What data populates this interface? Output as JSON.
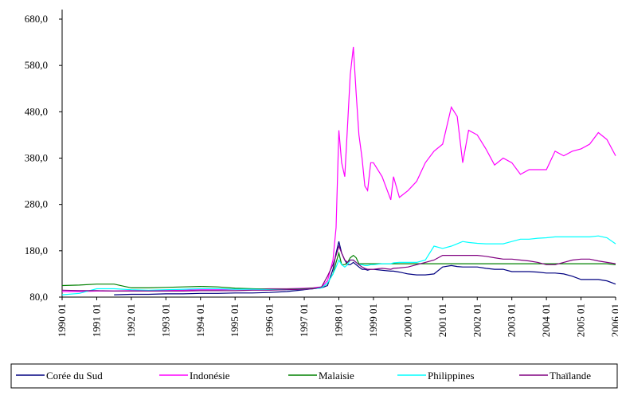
{
  "chart_data": {
    "type": "line",
    "x": [
      1990,
      1990.5,
      1991,
      1991.5,
      1992,
      1992.5,
      1993,
      1993.5,
      1994,
      1994.5,
      1995,
      1995.5,
      1996,
      1996.5,
      1997,
      1997.25,
      1997.5,
      1997.67,
      1997.83,
      1997.92,
      1998,
      1998.08,
      1998.17,
      1998.25,
      1998.33,
      1998.42,
      1998.5,
      1998.58,
      1998.67,
      1998.75,
      1998.83,
      1998.92,
      1999,
      1999.25,
      1999.5,
      1999.58,
      1999.75,
      2000,
      2000.25,
      2000.5,
      2000.75,
      2001,
      2001.25,
      2001.42,
      2001.58,
      2001.75,
      2002,
      2002.25,
      2002.5,
      2002.75,
      2003,
      2003.25,
      2003.5,
      2003.75,
      2004,
      2004.25,
      2004.5,
      2004.75,
      2005,
      2005.25,
      2005.5,
      2005.75,
      2006
    ],
    "series": [
      {
        "name": "Corée du Sud",
        "color": "#000080",
        "values": [
          null,
          null,
          null,
          85,
          86,
          86,
          87,
          87,
          88,
          88,
          89,
          89,
          90,
          92,
          96,
          98,
          100,
          105,
          140,
          175,
          200,
          175,
          160,
          150,
          150,
          155,
          150,
          145,
          140,
          140,
          138,
          140,
          140,
          138,
          136,
          136,
          134,
          130,
          128,
          128,
          130,
          145,
          148,
          146,
          145,
          145,
          145,
          142,
          140,
          140,
          135,
          135,
          135,
          134,
          132,
          132,
          130,
          125,
          118,
          118,
          118,
          115,
          108
        ]
      },
      {
        "name": "Indonésie",
        "color": "#ff00ff",
        "values": [
          92,
          92,
          93,
          93,
          94,
          94,
          95,
          95,
          96,
          96,
          97,
          97,
          98,
          98,
          99,
          100,
          102,
          115,
          160,
          230,
          440,
          370,
          340,
          450,
          560,
          620,
          520,
          430,
          380,
          320,
          310,
          370,
          370,
          340,
          290,
          340,
          295,
          310,
          330,
          370,
          395,
          410,
          490,
          470,
          370,
          440,
          430,
          400,
          365,
          380,
          370,
          345,
          355,
          355,
          355,
          395,
          385,
          395,
          400,
          410,
          435,
          420,
          385
        ]
      },
      {
        "name": "Malaisie",
        "color": "#008000",
        "values": [
          105,
          106,
          108,
          108,
          100,
          100,
          101,
          102,
          103,
          102,
          99,
          98,
          97,
          97,
          98,
          99,
          100,
          110,
          130,
          155,
          175,
          150,
          150,
          155,
          165,
          170,
          165,
          152,
          152,
          152,
          152,
          152,
          152,
          152,
          152,
          152,
          152,
          152,
          152,
          152,
          152,
          152,
          152,
          152,
          152,
          152,
          152,
          152,
          152,
          152,
          152,
          152,
          152,
          152,
          152,
          152,
          152,
          152,
          152,
          152,
          152,
          152,
          150
        ]
      },
      {
        "name": "Philippines",
        "color": "#00ffff",
        "values": [
          85,
          88,
          98,
          98,
          96,
          95,
          96,
          97,
          98,
          98,
          97,
          97,
          96,
          96,
          97,
          98,
          100,
          110,
          130,
          145,
          160,
          150,
          145,
          150,
          160,
          160,
          155,
          150,
          150,
          148,
          148,
          150,
          150,
          152,
          152,
          154,
          155,
          155,
          155,
          160,
          190,
          185,
          190,
          195,
          200,
          198,
          196,
          195,
          195,
          195,
          200,
          205,
          205,
          207,
          208,
          210,
          210,
          210,
          210,
          210,
          212,
          208,
          195
        ]
      },
      {
        "name": "Thaïlande",
        "color": "#800080",
        "values": [
          95,
          94,
          94,
          93,
          93,
          93,
          93,
          93,
          94,
          94,
          94,
          95,
          95,
          96,
          97,
          98,
          102,
          125,
          150,
          170,
          190,
          175,
          160,
          155,
          160,
          160,
          155,
          150,
          145,
          142,
          140,
          140,
          140,
          142,
          140,
          142,
          143,
          145,
          150,
          155,
          160,
          170,
          170,
          170,
          170,
          170,
          170,
          168,
          165,
          162,
          162,
          160,
          158,
          155,
          150,
          150,
          155,
          160,
          162,
          162,
          158,
          155,
          152
        ]
      }
    ],
    "xlim": [
      1990,
      2006
    ],
    "xticks": [
      {
        "value": 1990,
        "label": "1990 01"
      },
      {
        "value": 1991,
        "label": "1991 01"
      },
      {
        "value": 1992,
        "label": "1992 01"
      },
      {
        "value": 1993,
        "label": "1993 01"
      },
      {
        "value": 1994,
        "label": "1994 01"
      },
      {
        "value": 1995,
        "label": "1995 01"
      },
      {
        "value": 1996,
        "label": "1996 01"
      },
      {
        "value": 1997,
        "label": "1997 01"
      },
      {
        "value": 1998,
        "label": "1998 01"
      },
      {
        "value": 1999,
        "label": "1999 01"
      },
      {
        "value": 2000,
        "label": "2000 01"
      },
      {
        "value": 2001,
        "label": "2001 01"
      },
      {
        "value": 2002,
        "label": "2002 01"
      },
      {
        "value": 2003,
        "label": "2003 01"
      },
      {
        "value": 2004,
        "label": "2004 01"
      },
      {
        "value": 2005,
        "label": "2005 01"
      },
      {
        "value": 2006,
        "label": "2006 01"
      }
    ],
    "ylim": [
      80,
      680
    ],
    "yticks": [
      {
        "value": 80,
        "label": "80,0"
      },
      {
        "value": 180,
        "label": "180,0"
      },
      {
        "value": 280,
        "label": "280,0"
      },
      {
        "value": 380,
        "label": "380,0"
      },
      {
        "value": 480,
        "label": "480,0"
      },
      {
        "value": 580,
        "label": "580,0"
      },
      {
        "value": 680,
        "label": "680,0"
      }
    ],
    "legend": "bottom"
  }
}
